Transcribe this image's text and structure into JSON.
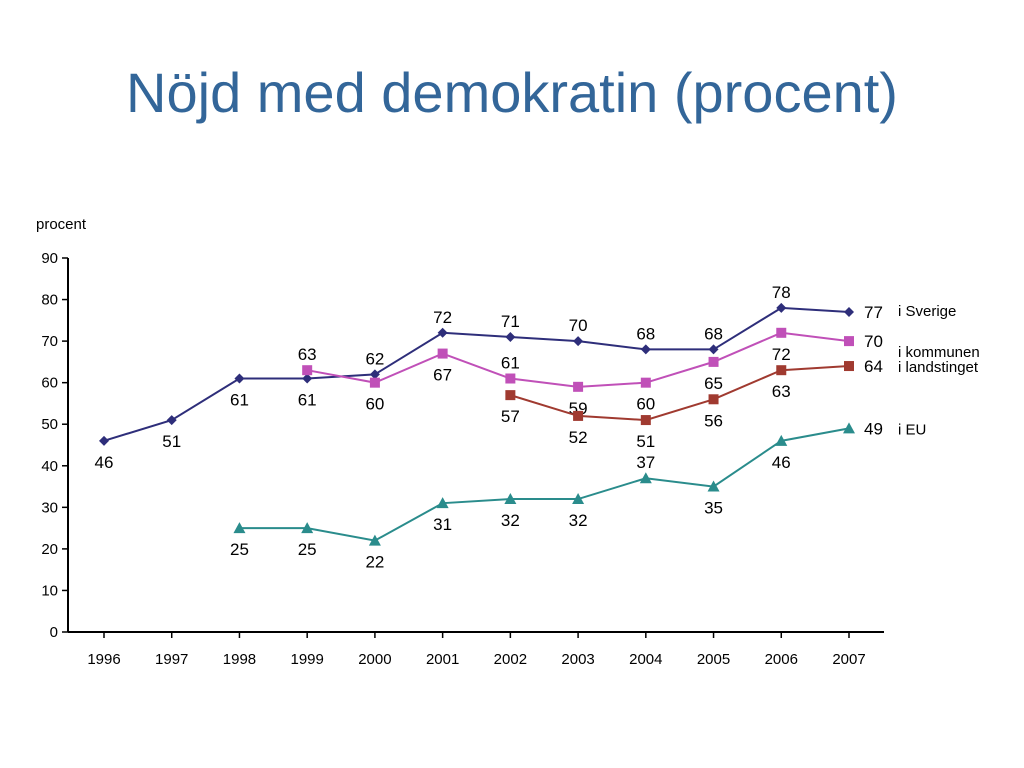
{
  "slide": {
    "title": "Nöjd med demokratin (procent)"
  },
  "chart_data": {
    "type": "line",
    "ylabel": "procent",
    "xlabel": "",
    "ylim": [
      0,
      90
    ],
    "yticks": [
      0,
      10,
      20,
      30,
      40,
      50,
      60,
      70,
      80,
      90
    ],
    "categories": [
      "1996",
      "1997",
      "1998",
      "1999",
      "2000",
      "2001",
      "2002",
      "2003",
      "2004",
      "2005",
      "2006",
      "2007"
    ],
    "grid": false,
    "series": [
      {
        "name": "i Sverige",
        "color": "#2e2e7a",
        "marker": "diamond",
        "values": [
          46,
          51,
          61,
          61,
          62,
          72,
          71,
          70,
          68,
          68,
          78,
          77
        ],
        "labels": [
          "46",
          "51",
          "61",
          "61",
          "62",
          "72",
          "71",
          "70",
          "68",
          "68",
          "78",
          "77"
        ],
        "label_pos": [
          "below",
          "below",
          "below",
          "below",
          "above",
          "above",
          "above",
          "above",
          "above",
          "above",
          "above",
          "right"
        ]
      },
      {
        "name": "i kommunen",
        "color": "#c050b8",
        "marker": "square",
        "values": [
          null,
          null,
          null,
          63,
          60,
          67,
          61,
          59,
          60,
          65,
          72,
          70
        ],
        "labels": [
          "",
          "",
          "",
          "63",
          "60",
          "67",
          "61",
          "59",
          "60",
          "65",
          "72",
          "70"
        ],
        "label_pos": [
          "",
          "",
          "",
          "above",
          "below",
          "below",
          "above",
          "below",
          "below",
          "below",
          "below",
          "right"
        ]
      },
      {
        "name": "i landstinget",
        "color": "#a03a30",
        "marker": "square",
        "values": [
          null,
          null,
          null,
          null,
          null,
          null,
          57,
          52,
          51,
          56,
          63,
          64
        ],
        "labels": [
          "",
          "",
          "",
          "",
          "",
          "",
          "57",
          "52",
          "51",
          "56",
          "63",
          "64"
        ],
        "label_pos": [
          "",
          "",
          "",
          "",
          "",
          "",
          "below",
          "below",
          "below",
          "below",
          "below",
          "right"
        ]
      },
      {
        "name": "i EU",
        "color": "#2a8c8c",
        "marker": "triangle",
        "values": [
          null,
          null,
          25,
          25,
          22,
          31,
          32,
          32,
          37,
          35,
          46,
          49
        ],
        "labels": [
          "",
          "",
          "25",
          "25",
          "22",
          "31",
          "32",
          "32",
          "37",
          "35",
          "46",
          "49"
        ],
        "label_pos": [
          "",
          "",
          "below",
          "below",
          "below",
          "below",
          "below",
          "below",
          "above",
          "below",
          "below",
          "right"
        ]
      }
    ]
  }
}
